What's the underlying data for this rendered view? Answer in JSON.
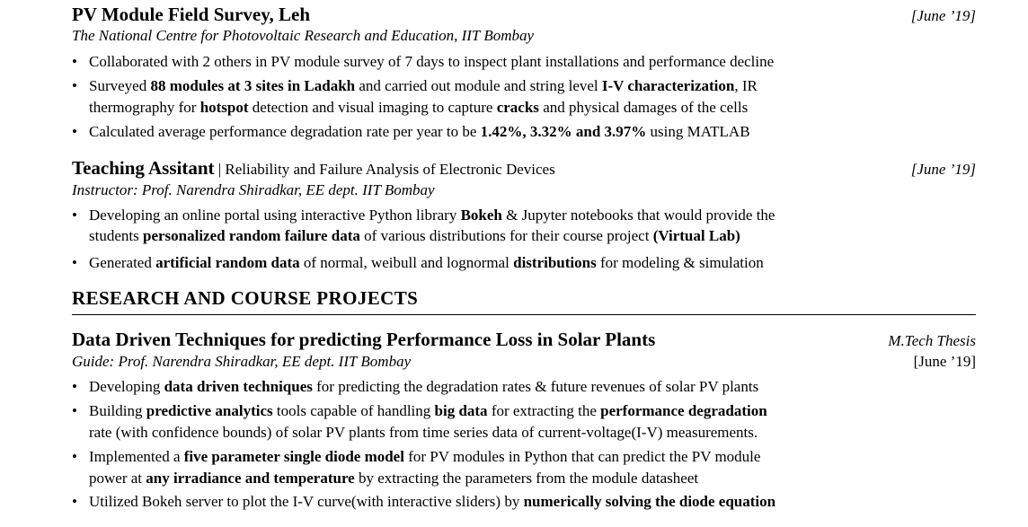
{
  "survey": {
    "title": "PV Module Field Survey, Leh",
    "date": "[June ’19]",
    "org": "The National Centre for Photovoltaic Research and Education, IIT Bombay",
    "b1": "Collaborated with 2 others in PV module survey of 7 days to inspect plant installations and performance decline",
    "b2_a": "Surveyed ",
    "b2_b": "88 modules at 3 sites in Ladakh",
    "b2_c": " and carried out module and string level ",
    "b2_d": "I-V characterization",
    "b2_e": ", IR",
    "b2_f": "thermography for ",
    "b2_g": "hotspot",
    "b2_h": " detection and visual imaging to capture ",
    "b2_i": "cracks",
    "b2_j": " and physical damages of the cells",
    "b3_a": "Calculated average performance degradation rate per year to be ",
    "b3_b": "1.42%, 3.32% and 3.97%",
    "b3_c": " using MATLAB"
  },
  "ta": {
    "title": "Teaching Assitant",
    "sep": " | ",
    "course": "Reliability and Failure Analysis of Electronic Devices",
    "date": "[June ’19]",
    "instructor": "Instructor: Prof. Narendra Shiradkar, EE dept. IIT Bombay",
    "b1_a": "Developing an online portal using interactive Python library ",
    "b1_b": "Bokeh",
    "b1_c": " & Jupyter notebooks that would provide the",
    "b1_d": "students ",
    "b1_e": "personalized random failure data",
    "b1_f": " of various distributions for their course project ",
    "b1_g": "(Virtual Lab)",
    "b2_a": "Generated ",
    "b2_b": "artificial random data",
    "b2_c": " of normal, weibull and lognormal ",
    "b2_d": "distributions",
    "b2_e": " for modeling & simulation"
  },
  "section": {
    "heading": "RESEARCH AND COURSE PROJECTS"
  },
  "thesis": {
    "title": "Data Driven Techniques for predicting Performance Loss in Solar Plants",
    "kind": "M.Tech Thesis",
    "guide": "Guide: Prof. Narendra Shiradkar, EE dept. IIT Bombay",
    "date": "[June ’19]",
    "b1_a": "Developing ",
    "b1_b": "data driven techniques",
    "b1_c": " for predicting the degradation rates & future revenues of solar PV plants",
    "b2_a": "Building ",
    "b2_b": "predictive analytics",
    "b2_c": " tools capable of handling ",
    "b2_d": "big data",
    "b2_e": " for extracting the ",
    "b2_f": "performance degradation",
    "b2_g": "rate (with confidence bounds) of solar PV plants from time series data of current-voltage(I-V) measurements.",
    "b3_a": "Implemented a ",
    "b3_b": "five parameter single diode model",
    "b3_c": " for PV modules in Python that can predict the PV module",
    "b3_d": "power at ",
    "b3_e": "any irradiance and temperature",
    "b3_f": " by extracting the parameters from the module datasheet",
    "b4_a": "Utilized Bokeh server to plot the I-V curve(with interactive sliders) by ",
    "b4_b": "numerically solving the diode equation"
  },
  "glyphs": {
    "bullet": "•"
  }
}
